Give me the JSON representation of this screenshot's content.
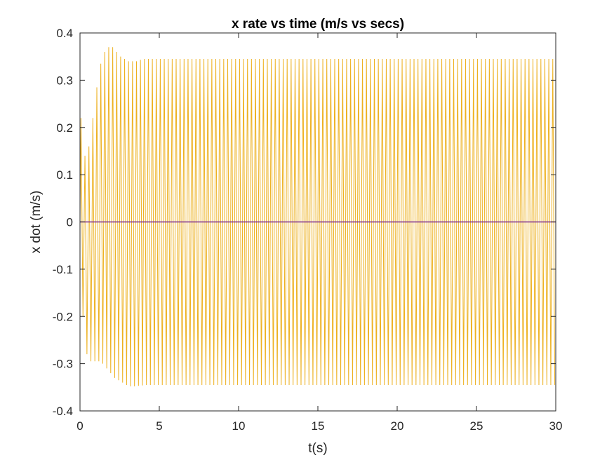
{
  "chart_data": {
    "type": "line",
    "title": "x rate vs time (m/s vs secs)",
    "xlabel": "t(s)",
    "ylabel": "x dot (m/s)",
    "xlim": [
      0,
      30
    ],
    "ylim": [
      -0.4,
      0.4
    ],
    "xticks": [
      0,
      5,
      10,
      15,
      20,
      25,
      30
    ],
    "xtick_labels": [
      "0",
      "5",
      "10",
      "15",
      "20",
      "25",
      "30"
    ],
    "yticks": [
      -0.4,
      -0.3,
      -0.2,
      -0.1,
      0,
      0.1,
      0.2,
      0.3,
      0.4
    ],
    "ytick_labels": [
      "-0.4",
      "-0.3",
      "-0.2",
      "-0.1",
      "0",
      "0.1",
      "0.2",
      "0.3",
      "0.4"
    ],
    "grid": false,
    "series": [
      {
        "color": "#EDB120",
        "description_period_s": 0.25,
        "x": [
          0,
          0.07,
          0.14,
          0.3,
          0.46,
          0.6,
          0.8,
          1.05,
          1.3,
          1.55,
          1.8,
          2.05,
          2.3,
          2.55,
          2.8,
          3.05,
          3.3,
          3.55,
          3.8,
          4.05,
          4.3,
          4.55,
          4.8,
          5.05,
          5.3,
          5.55,
          5.8,
          6.05,
          6.3,
          6.55,
          6.8,
          7.05,
          7.3
        ],
        "peaks": [
          0.22,
          0.14,
          0.16,
          0.22,
          0.285,
          0.335,
          0.36,
          0.37,
          0.37,
          0.36,
          0.35,
          0.345,
          0.34,
          0.34,
          0.34,
          0.343,
          0.345
        ],
        "troughs": [
          -0.2,
          -0.28,
          -0.295,
          -0.295,
          -0.295,
          -0.3,
          -0.31,
          -0.32,
          -0.33,
          -0.335,
          -0.34,
          -0.345,
          -0.348,
          -0.348,
          -0.347,
          -0.346,
          -0.345
        ],
        "steady_peak": 0.345,
        "steady_trough": -0.345,
        "period": 0.25
      },
      {
        "color": "#7E2F8E",
        "x": [
          0,
          30
        ],
        "y": [
          0,
          0
        ]
      }
    ]
  }
}
